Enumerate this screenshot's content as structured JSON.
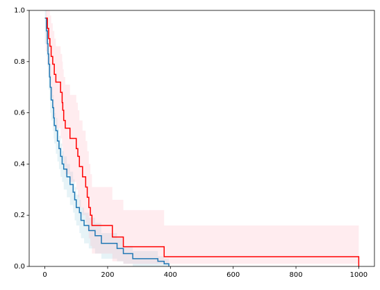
{
  "chart_data": {
    "type": "step",
    "xlim": [
      -50,
      1050
    ],
    "ylim": [
      0,
      1
    ],
    "xticks": [
      0,
      200,
      400,
      600,
      800,
      1000
    ],
    "yticks": [
      {
        "value": 0,
        "label": "0.0"
      },
      {
        "value": 0.2,
        "label": "0.2"
      },
      {
        "value": 0.4,
        "label": "0.4"
      },
      {
        "value": 0.6,
        "label": "0.6"
      },
      {
        "value": 0.8,
        "label": "0.8"
      },
      {
        "value": 1,
        "label": "1.0"
      }
    ],
    "series": [
      {
        "color": "#1f77b4",
        "band_color": "#add8e6",
        "x": [
          0,
          5,
          8,
          10,
          12,
          15,
          17,
          20,
          25,
          28,
          30,
          35,
          40,
          45,
          50,
          55,
          60,
          70,
          80,
          90,
          95,
          100,
          110,
          115,
          125,
          140,
          160,
          180,
          230,
          250,
          280,
          360,
          380,
          395
        ],
        "values": [
          0.97,
          0.92,
          0.87,
          0.83,
          0.79,
          0.74,
          0.7,
          0.65,
          0.62,
          0.58,
          0.55,
          0.53,
          0.49,
          0.46,
          0.43,
          0.4,
          0.38,
          0.35,
          0.32,
          0.29,
          0.26,
          0.23,
          0.21,
          0.18,
          0.16,
          0.14,
          0.12,
          0.09,
          0.07,
          0.05,
          0.03,
          0.02,
          0.01,
          0
        ],
        "upper": [
          1,
          0.96,
          0.92,
          0.88,
          0.84,
          0.79,
          0.75,
          0.7,
          0.67,
          0.63,
          0.6,
          0.58,
          0.54,
          0.51,
          0.48,
          0.45,
          0.43,
          0.4,
          0.37,
          0.34,
          0.31,
          0.28,
          0.26,
          0.23,
          0.21,
          0.19,
          0.17,
          0.13,
          0.11,
          0.08,
          0.06,
          0.04,
          0.03,
          0.03
        ],
        "lower": [
          0.93,
          0.87,
          0.82,
          0.78,
          0.74,
          0.69,
          0.65,
          0.6,
          0.57,
          0.53,
          0.5,
          0.48,
          0.44,
          0.41,
          0.38,
          0.35,
          0.33,
          0.3,
          0.27,
          0.24,
          0.21,
          0.18,
          0.16,
          0.13,
          0.11,
          0.09,
          0.07,
          0.05,
          0.03,
          0.02,
          0.01,
          0,
          0,
          0
        ]
      },
      {
        "color": "#ff0000",
        "band_color": "#ffc0cb",
        "x": [
          3,
          8,
          12,
          16,
          20,
          25,
          30,
          35,
          50,
          55,
          57,
          60,
          65,
          80,
          100,
          105,
          110,
          120,
          130,
          135,
          140,
          145,
          150,
          215,
          250,
          380,
          1000
        ],
        "values": [
          0.97,
          0.93,
          0.89,
          0.86,
          0.82,
          0.79,
          0.75,
          0.72,
          0.68,
          0.64,
          0.61,
          0.57,
          0.54,
          0.5,
          0.46,
          0.43,
          0.39,
          0.35,
          0.31,
          0.27,
          0.23,
          0.2,
          0.16,
          0.115,
          0.077,
          0.038,
          0
        ],
        "upper": [
          1,
          1,
          1,
          0.98,
          0.95,
          0.92,
          0.89,
          0.86,
          0.83,
          0.8,
          0.77,
          0.74,
          0.71,
          0.67,
          0.64,
          0.61,
          0.57,
          0.53,
          0.49,
          0.45,
          0.4,
          0.36,
          0.31,
          0.26,
          0.22,
          0.16,
          0.16
        ],
        "lower": [
          0.9,
          0.84,
          0.79,
          0.75,
          0.7,
          0.66,
          0.62,
          0.58,
          0.54,
          0.5,
          0.47,
          0.43,
          0.4,
          0.36,
          0.33,
          0.3,
          0.27,
          0.23,
          0.2,
          0.17,
          0.14,
          0.11,
          0.08,
          0.05,
          0.02,
          0.01,
          0.01
        ]
      }
    ]
  }
}
